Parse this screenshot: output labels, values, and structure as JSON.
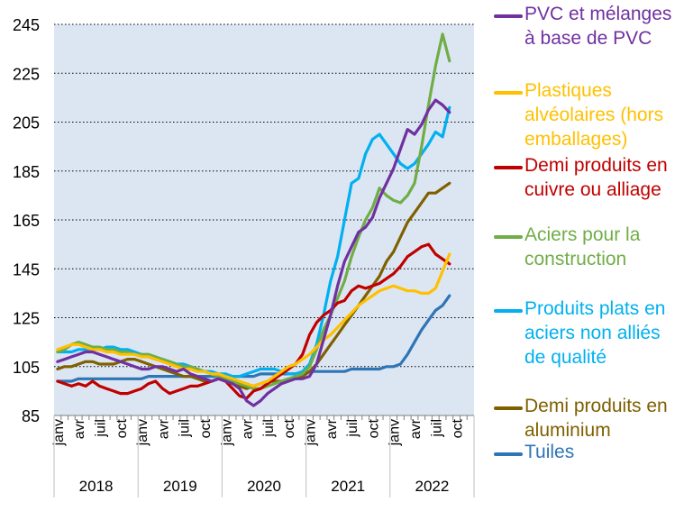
{
  "chart_data": {
    "type": "line",
    "title": "",
    "xlabel": "",
    "ylabel": "",
    "ylim": [
      85,
      245
    ],
    "yticks": [
      85,
      105,
      125,
      145,
      165,
      185,
      205,
      225,
      245
    ],
    "grid": "horizontal-dotted",
    "legend_position": "right",
    "x_start": "2018-01",
    "x_end": "2022-12",
    "month_tick_labels": [
      "janv",
      "avr",
      "juil",
      "oct"
    ],
    "years": [
      "2018",
      "2019",
      "2020",
      "2021",
      "2022"
    ],
    "series": [
      {
        "name": "PVC et mélanges à base de PVC",
        "color": "#7030a0",
        "values": [
          107,
          108,
          109,
          110,
          111,
          111,
          110,
          109,
          108,
          107,
          106,
          105,
          104,
          104,
          105,
          105,
          104,
          103,
          104,
          102,
          101,
          100,
          99,
          100,
          99,
          98,
          96,
          91,
          89,
          91,
          94,
          96,
          98,
          99,
          100,
          100,
          101,
          106,
          116,
          126,
          138,
          148,
          154,
          160,
          162,
          166,
          174,
          180,
          186,
          194,
          202,
          200,
          204,
          210,
          214,
          212,
          209
        ]
      },
      {
        "name": "Plastiques alvéolaires (hors emballages)",
        "color": "#ffc000",
        "values": [
          112,
          113,
          114,
          114,
          113,
          112,
          112,
          111,
          111,
          110,
          110,
          110,
          109,
          109,
          108,
          107,
          106,
          105,
          104,
          104,
          103,
          103,
          102,
          102,
          101,
          100,
          99,
          98,
          97,
          98,
          99,
          101,
          103,
          105,
          106,
          108,
          110,
          113,
          116,
          118,
          121,
          124,
          127,
          130,
          132,
          134,
          136,
          137,
          138,
          137,
          136,
          136,
          135,
          135,
          137,
          144,
          151
        ]
      },
      {
        "name": "Demi produits en cuivre ou alliage",
        "color": "#c00000",
        "values": [
          99,
          98,
          97,
          98,
          97,
          99,
          97,
          96,
          95,
          94,
          94,
          95,
          96,
          98,
          99,
          96,
          94,
          95,
          96,
          97,
          97,
          98,
          99,
          100,
          99,
          96,
          93,
          92,
          95,
          96,
          98,
          100,
          102,
          104,
          106,
          110,
          118,
          123,
          126,
          128,
          131,
          132,
          136,
          138,
          137,
          138,
          139,
          141,
          143,
          146,
          150,
          152,
          154,
          155,
          151,
          149,
          147
        ]
      },
      {
        "name": "Aciers pour la construction",
        "color": "#70ad47",
        "values": [
          111,
          112,
          114,
          115,
          114,
          113,
          113,
          112,
          112,
          111,
          111,
          110,
          110,
          110,
          109,
          108,
          107,
          106,
          105,
          105,
          104,
          103,
          102,
          101,
          100,
          99,
          98,
          97,
          96,
          96,
          97,
          98,
          99,
          100,
          101,
          102,
          105,
          112,
          120,
          126,
          133,
          140,
          150,
          158,
          165,
          170,
          178,
          175,
          173,
          172,
          175,
          180,
          195,
          212,
          228,
          241,
          230
        ]
      },
      {
        "name": "Produits plats en aciers non alliés de qualité",
        "color": "#00b0f0",
        "values": [
          111,
          111,
          111,
          112,
          112,
          112,
          112,
          113,
          113,
          112,
          112,
          111,
          110,
          109,
          108,
          108,
          107,
          106,
          106,
          105,
          104,
          103,
          103,
          102,
          102,
          101,
          101,
          102,
          103,
          104,
          104,
          104,
          103,
          102,
          102,
          103,
          106,
          114,
          126,
          140,
          150,
          165,
          180,
          182,
          192,
          198,
          200,
          196,
          192,
          188,
          186,
          188,
          192,
          196,
          201,
          199,
          211
        ]
      },
      {
        "name": "Demi produits en aluminium",
        "color": "#7f6000",
        "values": [
          104,
          105,
          105,
          106,
          107,
          107,
          106,
          106,
          106,
          107,
          108,
          108,
          107,
          106,
          105,
          104,
          103,
          102,
          101,
          101,
          100,
          99,
          99,
          100,
          99,
          98,
          97,
          96,
          97,
          98,
          99,
          99,
          99,
          100,
          100,
          101,
          103,
          106,
          110,
          114,
          118,
          122,
          126,
          130,
          134,
          138,
          142,
          148,
          152,
          158,
          164,
          168,
          172,
          176,
          176,
          178,
          180
        ]
      },
      {
        "name": "Tuiles",
        "color": "#2e75b6",
        "values": [
          99,
          99,
          99,
          100,
          100,
          100,
          100,
          100,
          100,
          100,
          100,
          100,
          100,
          101,
          101,
          101,
          101,
          101,
          101,
          101,
          101,
          101,
          101,
          101,
          101,
          101,
          101,
          101,
          101,
          102,
          102,
          102,
          102,
          102,
          102,
          102,
          103,
          103,
          103,
          103,
          103,
          103,
          104,
          104,
          104,
          104,
          104,
          105,
          105,
          106,
          110,
          115,
          120,
          124,
          128,
          130,
          134
        ]
      }
    ]
  }
}
